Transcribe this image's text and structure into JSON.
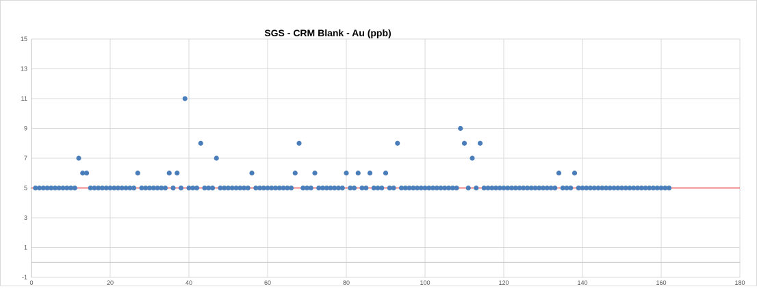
{
  "chart_data": {
    "type": "scatter",
    "title": "SGS - CRM Blank - Au (ppb)",
    "xlabel": "",
    "ylabel": "",
    "xlim": [
      0,
      180
    ],
    "ylim": [
      -1,
      15
    ],
    "x_ticks": [
      "0",
      "20",
      "40",
      "60",
      "80",
      "100",
      "120",
      "140",
      "160",
      "180"
    ],
    "y_ticks": [
      "-1",
      "1",
      "3",
      "5",
      "7",
      "9",
      "11",
      "13",
      "15"
    ],
    "grid": true,
    "legend": "none",
    "reference_line": {
      "y": 5,
      "color": "#e31a1c"
    },
    "marker_color": "#4a7ebb",
    "series": [
      {
        "x": [
          1,
          2,
          3,
          4,
          5,
          6,
          7,
          8,
          9,
          10,
          11,
          12,
          13,
          14,
          15,
          16,
          17,
          18,
          19,
          20,
          21,
          22,
          23,
          24,
          25,
          26,
          27,
          28,
          29,
          30,
          31,
          32,
          33,
          34,
          35,
          36,
          37,
          38,
          39,
          40,
          41,
          42,
          43,
          44,
          45,
          46,
          47,
          48,
          49,
          50,
          51,
          52,
          53,
          54,
          55,
          56,
          57,
          58,
          59,
          60,
          61,
          62,
          63,
          64,
          65,
          66,
          67,
          68,
          69,
          70,
          71,
          72,
          73,
          74,
          75,
          76,
          77,
          78,
          79,
          80,
          81,
          82,
          83,
          84,
          85,
          86,
          87,
          88,
          89,
          90,
          91,
          92,
          93,
          94,
          95,
          96,
          97,
          98,
          99,
          100,
          101,
          102,
          103,
          104,
          105,
          106,
          107,
          108,
          109,
          110,
          111,
          112,
          113,
          114,
          115,
          116,
          117,
          118,
          119,
          120,
          121,
          122,
          123,
          124,
          125,
          126,
          127,
          128,
          129,
          130,
          131,
          132,
          133,
          134,
          135,
          136,
          137,
          138,
          139,
          140,
          141,
          142,
          143,
          144,
          145,
          146,
          147,
          148,
          149,
          150,
          151,
          152,
          153,
          154,
          155,
          156,
          157,
          158,
          159,
          160,
          161,
          162
        ],
        "y": [
          5,
          5,
          5,
          5,
          5,
          5,
          5,
          5,
          5,
          5,
          5,
          7,
          6,
          6,
          5,
          5,
          5,
          5,
          5,
          5,
          5,
          5,
          5,
          5,
          5,
          5,
          6,
          5,
          5,
          5,
          5,
          5,
          5,
          5,
          6,
          5,
          6,
          5,
          11,
          5,
          5,
          5,
          8,
          5,
          5,
          5,
          7,
          5,
          5,
          5,
          5,
          5,
          5,
          5,
          5,
          6,
          5,
          5,
          5,
          5,
          5,
          5,
          5,
          5,
          5,
          5,
          6,
          8,
          5,
          5,
          5,
          6,
          5,
          5,
          5,
          5,
          5,
          5,
          5,
          6,
          5,
          5,
          6,
          5,
          5,
          6,
          5,
          5,
          5,
          6,
          5,
          5,
          8,
          5,
          5,
          5,
          5,
          5,
          5,
          5,
          5,
          5,
          5,
          5,
          5,
          5,
          5,
          5,
          9,
          8,
          5,
          7,
          5,
          8,
          5,
          5,
          5,
          5,
          5,
          5,
          5,
          5,
          5,
          5,
          5,
          5,
          5,
          5,
          5,
          5,
          5,
          5,
          5,
          6,
          5,
          5,
          5,
          6,
          5,
          5,
          5,
          5,
          5,
          5,
          5,
          5,
          5,
          5,
          5,
          5,
          5,
          5,
          5,
          5,
          5,
          5,
          5,
          5,
          5,
          5,
          5,
          5
        ]
      }
    ]
  }
}
